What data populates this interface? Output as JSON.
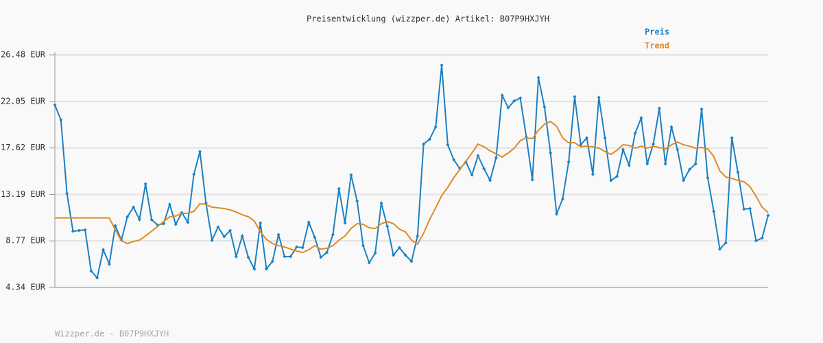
{
  "chart_data": {
    "type": "line",
    "title": "Preisentwicklung (wizzper.de) Artikel: B07P9HXJYH",
    "footer": "Wizzper.de - B07P9HXJYH",
    "legend": "top-right",
    "grid": true,
    "ylim": [
      4.34,
      26.48
    ],
    "yticks": [
      {
        "value": 4.34,
        "label": "4.34 EUR"
      },
      {
        "value": 8.77,
        "label": "8.77 EUR"
      },
      {
        "value": 13.19,
        "label": "13.19 EUR"
      },
      {
        "value": 17.62,
        "label": "17.62 EUR"
      },
      {
        "value": 22.05,
        "label": "22.05 EUR"
      },
      {
        "value": 26.48,
        "label": "26.48 EUR"
      }
    ],
    "series": [
      {
        "name": "Preis",
        "color": "#1a80c4",
        "markers": true,
        "values": [
          21.71,
          20.28,
          13.29,
          9.69,
          9.76,
          9.82,
          5.9,
          5.25,
          7.93,
          6.56,
          10.22,
          8.85,
          11.07,
          11.98,
          10.8,
          14.2,
          10.8,
          10.28,
          10.41,
          12.24,
          10.35,
          11.46,
          10.54,
          15.11,
          17.27,
          12.37,
          8.84,
          10.09,
          9.17,
          9.76,
          7.28,
          9.24,
          7.21,
          6.1,
          10.48,
          6.1,
          6.82,
          9.37,
          7.28,
          7.28,
          8.19,
          8.13,
          10.54,
          9.11,
          7.21,
          7.67,
          9.37,
          13.74,
          10.48,
          15.05,
          12.57,
          8.32,
          6.69,
          7.61,
          12.37,
          10.15,
          7.41,
          8.13,
          7.41,
          6.82,
          9.24,
          17.99,
          18.45,
          19.62,
          25.5,
          17.92,
          16.49,
          15.64,
          16.29,
          15.05,
          16.88,
          15.64,
          14.53,
          16.68,
          22.63,
          21.45,
          22.1,
          22.37,
          18.64,
          14.59,
          24.32,
          21.52,
          17.14,
          11.33,
          12.76,
          16.29,
          22.5,
          17.92,
          18.58,
          15.11,
          22.43,
          18.58,
          14.53,
          14.92,
          17.47,
          15.97,
          19.03,
          20.47,
          16.1,
          17.99,
          21.39,
          16.1,
          19.62,
          17.47,
          14.53,
          15.57,
          16.1,
          21.32,
          14.79,
          11.59,
          7.99,
          8.58,
          18.58,
          15.31,
          11.79,
          11.85,
          8.78,
          9.04,
          11.2
        ]
      },
      {
        "name": "Trend",
        "color": "#e08a22",
        "markers": false,
        "values": [
          10.96,
          10.96,
          10.96,
          10.96,
          10.96,
          10.96,
          10.96,
          10.96,
          10.96,
          10.96,
          9.82,
          8.78,
          8.52,
          8.71,
          8.85,
          9.24,
          9.69,
          10.15,
          10.61,
          11.07,
          11.13,
          11.39,
          11.39,
          11.59,
          12.31,
          12.24,
          11.98,
          11.92,
          11.85,
          11.72,
          11.52,
          11.26,
          11.07,
          10.67,
          9.63,
          8.91,
          8.52,
          8.32,
          8.19,
          7.99,
          7.8,
          7.67,
          7.93,
          8.32,
          7.99,
          8.06,
          8.32,
          8.84,
          9.24,
          9.95,
          10.41,
          10.35,
          10.02,
          9.95,
          10.41,
          10.61,
          10.41,
          9.89,
          9.63,
          8.84,
          8.45,
          9.5,
          10.8,
          11.92,
          13.09,
          13.87,
          14.79,
          15.57,
          16.36,
          17.14,
          17.99,
          17.73,
          17.34,
          17.07,
          16.75,
          17.14,
          17.6,
          18.32,
          18.58,
          18.51,
          19.3,
          19.88,
          20.14,
          19.69,
          18.58,
          18.12,
          18.12,
          17.73,
          17.79,
          17.73,
          17.6,
          17.27,
          17.01,
          17.4,
          17.92,
          17.86,
          17.6,
          17.79,
          17.6,
          17.79,
          17.66,
          17.53,
          17.92,
          18.18,
          17.92,
          17.79,
          17.6,
          17.66,
          17.53,
          16.81,
          15.44,
          14.85,
          14.72,
          14.53,
          14.4,
          13.94,
          13.02,
          11.98,
          11.46
        ]
      }
    ]
  }
}
